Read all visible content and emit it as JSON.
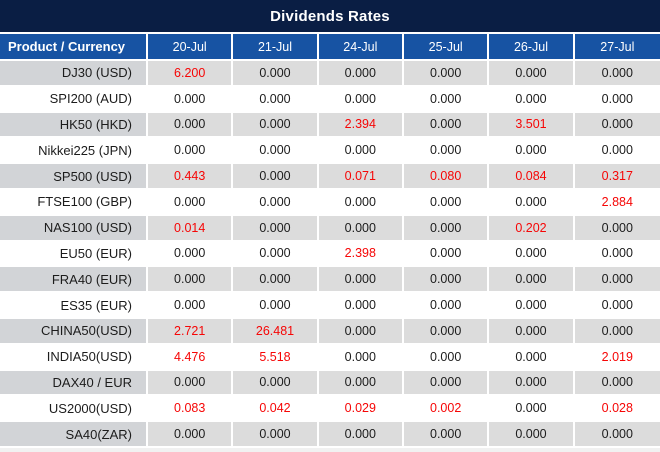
{
  "page": {
    "title": "Dividends Rates"
  },
  "colors": {
    "title_bar_bg": "#0a1e44",
    "header_bg": "#1753a3",
    "stripe_value_bg": "#dcdcdc",
    "stripe_label_bg": "#d2d4d7",
    "zero_text": "#1c1c1c",
    "nonzero_text": "#f60606",
    "separator": "#ffffff"
  },
  "chart_data": {
    "type": "table",
    "title": "Dividends Rates",
    "product_header": "Product / Currency",
    "date_columns": [
      "20-Jul",
      "21-Jul",
      "24-Jul",
      "25-Jul",
      "26-Jul",
      "27-Jul"
    ],
    "highlight_rule": "values other than 0.000 are shown in red",
    "rows": [
      {
        "product": "DJ30 (USD)",
        "values": [
          "6.200",
          "0.000",
          "0.000",
          "0.000",
          "0.000",
          "0.000"
        ]
      },
      {
        "product": "SPI200 (AUD)",
        "values": [
          "0.000",
          "0.000",
          "0.000",
          "0.000",
          "0.000",
          "0.000"
        ]
      },
      {
        "product": "HK50 (HKD)",
        "values": [
          "0.000",
          "0.000",
          "2.394",
          "0.000",
          "3.501",
          "0.000"
        ]
      },
      {
        "product": "Nikkei225 (JPN)",
        "values": [
          "0.000",
          "0.000",
          "0.000",
          "0.000",
          "0.000",
          "0.000"
        ]
      },
      {
        "product": "SP500 (USD)",
        "values": [
          "0.443",
          "0.000",
          "0.071",
          "0.080",
          "0.084",
          "0.317"
        ]
      },
      {
        "product": "FTSE100 (GBP)",
        "values": [
          "0.000",
          "0.000",
          "0.000",
          "0.000",
          "0.000",
          "2.884"
        ]
      },
      {
        "product": "NAS100 (USD)",
        "values": [
          "0.014",
          "0.000",
          "0.000",
          "0.000",
          "0.202",
          "0.000"
        ]
      },
      {
        "product": "EU50 (EUR)",
        "values": [
          "0.000",
          "0.000",
          "2.398",
          "0.000",
          "0.000",
          "0.000"
        ]
      },
      {
        "product": "FRA40 (EUR)",
        "values": [
          "0.000",
          "0.000",
          "0.000",
          "0.000",
          "0.000",
          "0.000"
        ]
      },
      {
        "product": "ES35 (EUR)",
        "values": [
          "0.000",
          "0.000",
          "0.000",
          "0.000",
          "0.000",
          "0.000"
        ]
      },
      {
        "product": "CHINA50(USD)",
        "values": [
          "2.721",
          "26.481",
          "0.000",
          "0.000",
          "0.000",
          "0.000"
        ]
      },
      {
        "product": "INDIA50(USD)",
        "values": [
          "4.476",
          "5.518",
          "0.000",
          "0.000",
          "0.000",
          "2.019"
        ]
      },
      {
        "product": "DAX40 / EUR",
        "values": [
          "0.000",
          "0.000",
          "0.000",
          "0.000",
          "0.000",
          "0.000"
        ]
      },
      {
        "product": "US2000(USD)",
        "values": [
          "0.083",
          "0.042",
          "0.029",
          "0.002",
          "0.000",
          "0.028"
        ]
      },
      {
        "product": "SA40(ZAR)",
        "values": [
          "0.000",
          "0.000",
          "0.000",
          "0.000",
          "0.000",
          "0.000"
        ]
      }
    ]
  }
}
